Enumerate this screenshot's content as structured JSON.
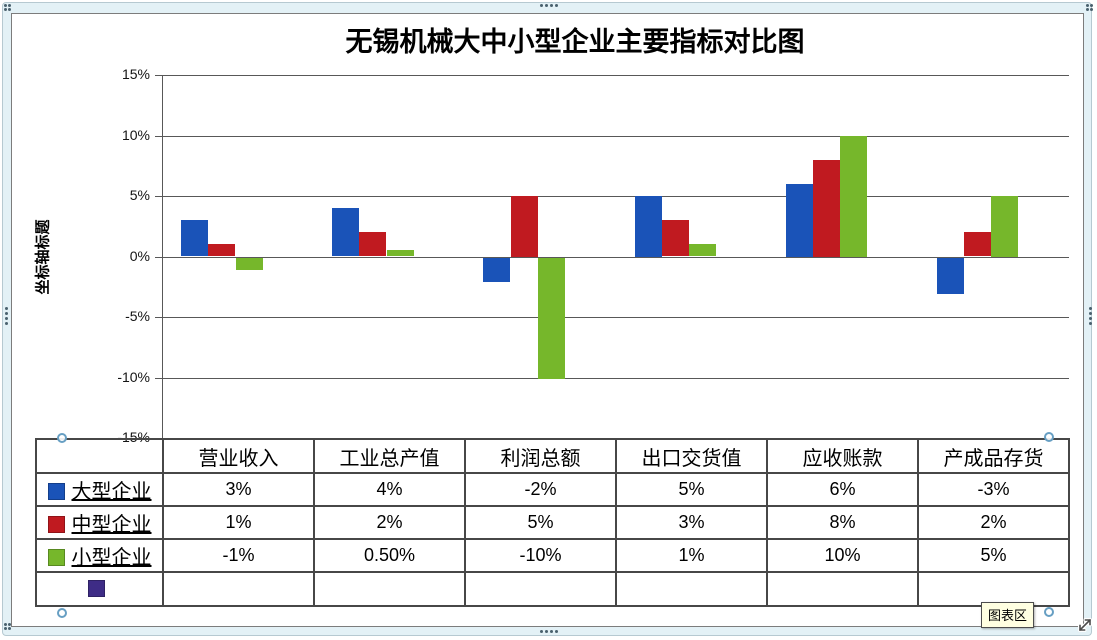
{
  "window": {
    "tooltip": "图表区"
  },
  "chart_data": {
    "type": "bar",
    "title": "无锡机械大中小型企业主要指标对比图",
    "y_axis_title": "坐标轴标题",
    "categories": [
      "营业收入",
      "工业总产值",
      "利润总额",
      "出口交货值",
      "应收账款",
      "产成品存货"
    ],
    "series": [
      {
        "name": "大型企业",
        "color": "#1A53B8",
        "values": [
          3,
          4,
          -2,
          5,
          6,
          -3
        ],
        "labels": [
          "3%",
          "4%",
          "-2%",
          "5%",
          "6%",
          "-3%"
        ]
      },
      {
        "name": "中型企业",
        "color": "#C01A20",
        "values": [
          1,
          2,
          5,
          3,
          8,
          2
        ],
        "labels": [
          "1%",
          "2%",
          "5%",
          "3%",
          "8%",
          "2%"
        ]
      },
      {
        "name": "小型企业",
        "color": "#76B72B",
        "values": [
          -1,
          0.5,
          -10,
          1,
          10,
          5
        ],
        "labels": [
          "-1%",
          "0.50%",
          "-10%",
          "1%",
          "10%",
          "5%"
        ]
      },
      {
        "name": "",
        "color": "#3E2C86",
        "values": [],
        "labels": [
          "",
          "",
          "",
          "",
          "",
          ""
        ]
      }
    ],
    "y_ticks": [
      "15%",
      "10%",
      "5%",
      "0%",
      "-5%",
      "-10%",
      "-15%"
    ],
    "ylim": [
      -15,
      15
    ],
    "grid": true,
    "legend_position": "table-left",
    "data_table_shown": true
  },
  "colors": {
    "gridline": "#585858",
    "table_border": "#474747",
    "frame_band": "#E3F1F6",
    "tooltip_bg": "#FFFFE1",
    "handle_stroke": "#679FC3"
  }
}
